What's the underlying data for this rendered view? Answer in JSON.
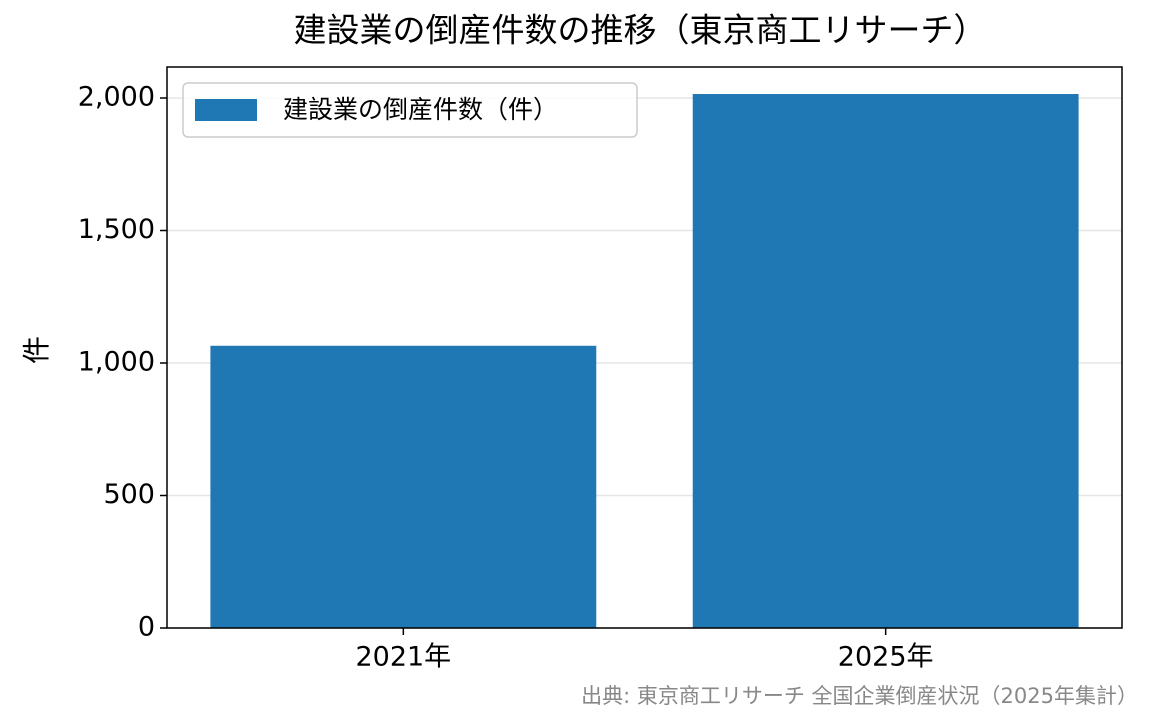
{
  "chart_data": {
    "type": "bar",
    "title": "建設業の倒産件数の推移（東京商工リサーチ）",
    "categories": [
      "2021年",
      "2025年"
    ],
    "series": [
      {
        "name": "建設業の倒産件数（件）",
        "color": "#1f77b4",
        "values": [
          1065,
          2015
        ]
      }
    ],
    "ylabel": "件",
    "ylim": [
      0,
      2117
    ],
    "yticks": [
      0,
      500,
      {
        "value": 1000,
        "label": "1,000"
      },
      {
        "value": 1500,
        "label": "1,500"
      },
      {
        "value": 2000,
        "label": "2,000"
      }
    ],
    "grid": true,
    "legend": "upper left",
    "source": "出典: 東京商工リサーチ 全国企業倒産状況（2025年集計）"
  }
}
